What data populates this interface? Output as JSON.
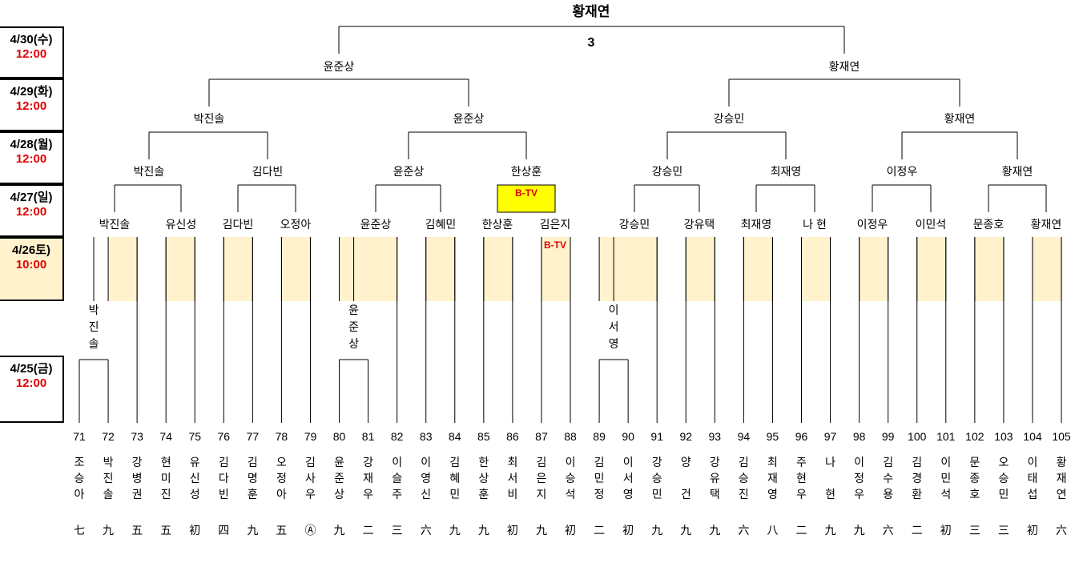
{
  "title": "황재연",
  "final_label": "3",
  "dates": [
    {
      "date": "4/30(수)",
      "time": "12:00"
    },
    {
      "date": "4/29(화)",
      "time": "12:00"
    },
    {
      "date": "4/28(월)",
      "time": "12:00"
    },
    {
      "date": "4/27(일)",
      "time": "12:00"
    },
    {
      "date": "4/26토)",
      "time": "10:00"
    },
    {
      "date": "4/25(금)",
      "time": "12:00"
    }
  ],
  "highlight_label": "B-TV",
  "btv_label": "B-TV",
  "colors": {
    "accent_red": "#e00000",
    "highlight_yellow": "#ffff00",
    "shade": "#fff2cc"
  },
  "players": [
    {
      "num": "71",
      "name": "조승아",
      "rank": "七"
    },
    {
      "num": "72",
      "name": "박진솔",
      "rank": "九"
    },
    {
      "num": "73",
      "name": "강병권",
      "rank": "五"
    },
    {
      "num": "74",
      "name": "현미진",
      "rank": "五"
    },
    {
      "num": "75",
      "name": "유신성",
      "rank": "初"
    },
    {
      "num": "76",
      "name": "김다빈",
      "rank": "四"
    },
    {
      "num": "77",
      "name": "김명훈",
      "rank": "九"
    },
    {
      "num": "78",
      "name": "오정아",
      "rank": "五"
    },
    {
      "num": "79",
      "name": "김사우",
      "rank": "Ⓐ"
    },
    {
      "num": "80",
      "name": "윤준상",
      "rank": "九"
    },
    {
      "num": "81",
      "name": "강재우",
      "rank": "二"
    },
    {
      "num": "82",
      "name": "이슬주",
      "rank": "三"
    },
    {
      "num": "83",
      "name": "이영신",
      "rank": "六"
    },
    {
      "num": "84",
      "name": "김혜민",
      "rank": "九"
    },
    {
      "num": "85",
      "name": "한상훈",
      "rank": "九"
    },
    {
      "num": "86",
      "name": "최서비",
      "rank": "初"
    },
    {
      "num": "87",
      "name": "김은지",
      "rank": "九"
    },
    {
      "num": "88",
      "name": "이승석",
      "rank": "初"
    },
    {
      "num": "89",
      "name": "김민정",
      "rank": "二"
    },
    {
      "num": "90",
      "name": "이서영",
      "rank": "初"
    },
    {
      "num": "91",
      "name": "강승민",
      "rank": "九"
    },
    {
      "num": "92",
      "name": "양 건",
      "rank": "九"
    },
    {
      "num": "93",
      "name": "강유택",
      "rank": "九"
    },
    {
      "num": "94",
      "name": "김승진",
      "rank": "六"
    },
    {
      "num": "95",
      "name": "최재영",
      "rank": "八"
    },
    {
      "num": "96",
      "name": "주현우",
      "rank": "二"
    },
    {
      "num": "97",
      "name": "나 현",
      "rank": "九"
    },
    {
      "num": "98",
      "name": "이정우",
      "rank": "九"
    },
    {
      "num": "99",
      "name": "김수용",
      "rank": "六"
    },
    {
      "num": "100",
      "name": "김경환",
      "rank": "二"
    },
    {
      "num": "101",
      "name": "이민석",
      "rank": "初"
    },
    {
      "num": "102",
      "name": "문종호",
      "rank": "三"
    },
    {
      "num": "103",
      "name": "오승민",
      "rank": "三"
    },
    {
      "num": "104",
      "name": "이태섭",
      "rank": "初"
    },
    {
      "num": "105",
      "name": "황재연",
      "rank": "六"
    }
  ],
  "prelim_winners": [
    "박진솔",
    "윤준상",
    "이서영"
  ],
  "round1_winners": [
    "박진솔",
    "유신성",
    "김다빈",
    "오정아",
    "윤준상",
    "김혜민",
    "한상훈",
    "김은지",
    "강승민",
    "강유택",
    "최재영",
    "나 현",
    "이정우",
    "이민석",
    "문종호",
    "황재연"
  ],
  "round2_winners": [
    "박진솔",
    "김다빈",
    "윤준상",
    "한상훈",
    "강승민",
    "최재영",
    "이정우",
    "황재연"
  ],
  "round3_winners": [
    "박진솔",
    "윤준상",
    "강승민",
    "황재연"
  ],
  "round4_winners": [
    "윤준상",
    "황재연"
  ]
}
